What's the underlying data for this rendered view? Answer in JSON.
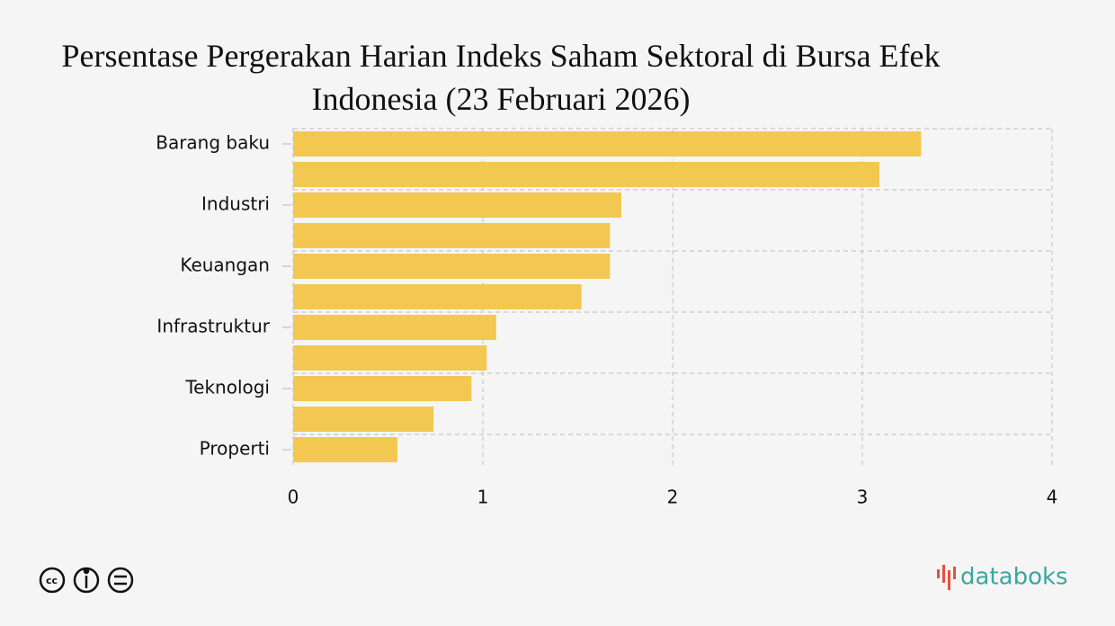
{
  "chart_data": {
    "type": "barh",
    "title": "Persentase Pergerakan Harian Indeks Saham Sektoral di Bursa Efek Indonesia (23 Februari 2026)",
    "categories": [
      "Barang baku",
      null,
      "Industri",
      null,
      "Keuangan",
      null,
      "Infrastruktur",
      null,
      "Teknologi",
      null,
      "Properti"
    ],
    "values": [
      3.31,
      3.09,
      1.73,
      1.67,
      1.67,
      1.52,
      1.07,
      1.02,
      0.94,
      0.74,
      0.55
    ],
    "color": "#f2c851",
    "xlim": [
      0,
      4
    ],
    "xticks": [
      0,
      1,
      2,
      3,
      4
    ],
    "grid": true
  },
  "footer": {
    "brand": "databoks"
  }
}
